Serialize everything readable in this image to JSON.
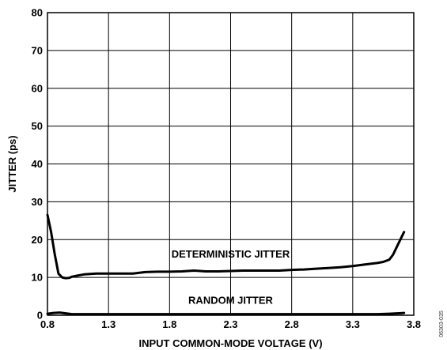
{
  "chart_data": {
    "type": "line",
    "xlabel": "INPUT COMMON-MODE VOLTAGE (V)",
    "ylabel": "JITTER (ps)",
    "xlim": [
      0.8,
      3.8
    ],
    "ylim": [
      0,
      80
    ],
    "xticks": [
      "0.8",
      "1.3",
      "1.8",
      "2.3",
      "2.8",
      "3.3",
      "3.8"
    ],
    "xtick_values": [
      0.8,
      1.3,
      1.8,
      2.3,
      2.8,
      3.3,
      3.8
    ],
    "yticks": [
      "0",
      "10",
      "20",
      "30",
      "40",
      "50",
      "60",
      "70",
      "80"
    ],
    "ytick_values": [
      0,
      10,
      20,
      30,
      40,
      50,
      60,
      70,
      80
    ],
    "grid": true,
    "line_color": "#000000",
    "grid_color": "#000000",
    "series": [
      {
        "name": "DETERMINISTIC JITTER",
        "x": [
          0.8,
          0.83,
          0.86,
          0.89,
          0.92,
          0.95,
          0.98,
          1.0,
          1.05,
          1.1,
          1.2,
          1.3,
          1.4,
          1.5,
          1.6,
          1.7,
          1.8,
          1.9,
          2.0,
          2.1,
          2.2,
          2.3,
          2.4,
          2.5,
          2.6,
          2.7,
          2.8,
          2.9,
          3.0,
          3.1,
          3.2,
          3.3,
          3.4,
          3.5,
          3.55,
          3.6,
          3.63,
          3.66,
          3.69,
          3.72
        ],
        "y": [
          26.5,
          22,
          16,
          11,
          10,
          9.8,
          9.9,
          10.2,
          10.5,
          10.8,
          11,
          11,
          11,
          11,
          11.4,
          11.5,
          11.5,
          11.6,
          11.8,
          11.6,
          11.6,
          11.7,
          11.8,
          11.8,
          11.8,
          11.8,
          12,
          12.1,
          12.3,
          12.5,
          12.7,
          13,
          13.4,
          13.8,
          14.1,
          14.7,
          16,
          18,
          20,
          22
        ]
      },
      {
        "name": "RANDOM JITTER",
        "x": [
          0.8,
          0.85,
          0.9,
          0.95,
          1.0,
          1.5,
          2.0,
          2.5,
          3.0,
          3.5,
          3.6,
          3.72
        ],
        "y": [
          0.4,
          0.6,
          0.7,
          0.5,
          0.3,
          0.3,
          0.3,
          0.3,
          0.3,
          0.3,
          0.4,
          0.6
        ]
      }
    ],
    "annotations": [
      {
        "text": "DETERMINISTIC JITTER",
        "x": 2.3,
        "y": 15.3
      },
      {
        "text": "RANDOM JITTER",
        "x": 2.3,
        "y": 3
      }
    ],
    "figure_id": "06303-035"
  }
}
